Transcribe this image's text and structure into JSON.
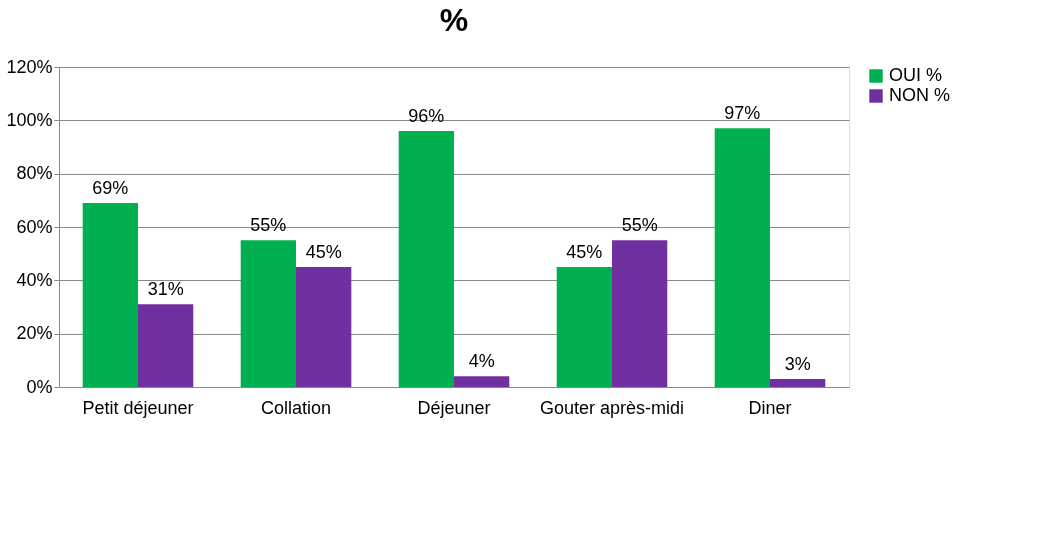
{
  "chart_data": {
    "type": "bar",
    "title": "%",
    "categories": [
      "Petit déjeuner",
      "Collation",
      "Déjeuner",
      "Gouter après-midi",
      "Diner"
    ],
    "series": [
      {
        "name": "OUI %",
        "color": "#00b050",
        "values": [
          69,
          55,
          96,
          45,
          97
        ],
        "value_labels": [
          "69%",
          "55%",
          "96%",
          "45%",
          "97%"
        ]
      },
      {
        "name": "NON %",
        "color": "#7030a0",
        "values": [
          31,
          45,
          4,
          55,
          3
        ],
        "value_labels": [
          "31%",
          "45%",
          "4%",
          "55%",
          "3%"
        ]
      }
    ],
    "ylim": [
      0,
      120
    ],
    "yticks": [
      {
        "value": 0,
        "label": "0%"
      },
      {
        "value": 20,
        "label": "20%"
      },
      {
        "value": 40,
        "label": "40%"
      },
      {
        "value": 60,
        "label": "60%"
      },
      {
        "value": 80,
        "label": "80%"
      },
      {
        "value": 100,
        "label": "100%"
      },
      {
        "value": 120,
        "label": "120%"
      }
    ],
    "grid": "y",
    "legend": "right"
  }
}
